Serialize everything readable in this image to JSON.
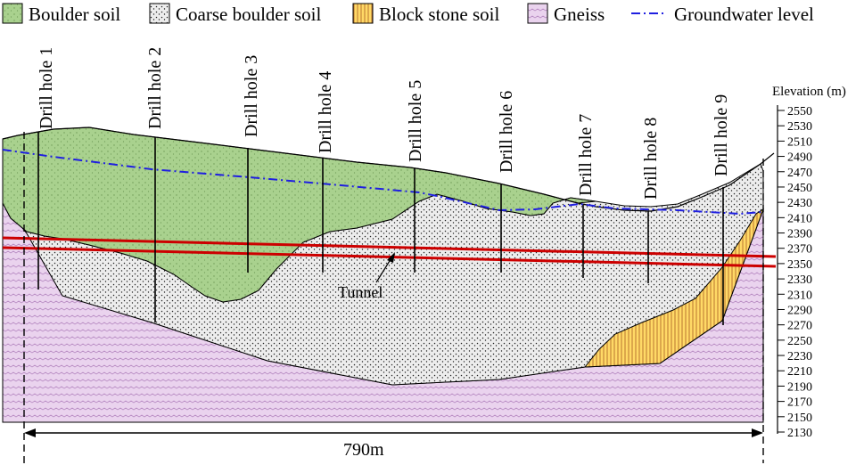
{
  "legend": [
    {
      "key": "boulder",
      "label": "Boulder soil"
    },
    {
      "key": "coarse",
      "label": "Coarse boulder soil"
    },
    {
      "key": "block",
      "label": "Block stone soil"
    },
    {
      "key": "gneiss",
      "label": "Gneiss"
    },
    {
      "key": "groundwater",
      "label": "Groundwater level"
    }
  ],
  "colors": {
    "boulder": "#a9d18e",
    "coarse": "#ededed",
    "block": "#ffd966",
    "gneiss": "#ead3ee",
    "groundwater": "#1f1fe0",
    "tunnel": "#cc0000"
  },
  "drill_holes": [
    "Drill hole 1",
    "Drill hole 2",
    "Drill hole 3",
    "Drill hole 4",
    "Drill hole 5",
    "Drill hole 6",
    "Drill hole 7",
    "Drill hole 8",
    "Drill hole 9"
  ],
  "axis": {
    "title": "Elevation (m)",
    "ticks": [
      "2550",
      "2530",
      "2510",
      "2490",
      "2470",
      "2450",
      "2430",
      "2410",
      "2390",
      "2370",
      "2350",
      "2330",
      "2310",
      "2290",
      "2270",
      "2250",
      "2230",
      "2210",
      "2190",
      "2170",
      "2150",
      "2130"
    ]
  },
  "tunnel_label": "Tunnel",
  "span_label": "790m"
}
